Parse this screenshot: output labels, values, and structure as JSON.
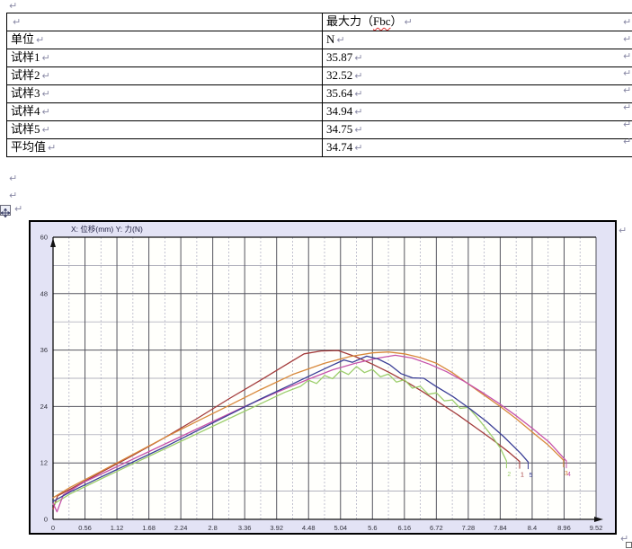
{
  "marks": {
    "pilcrow": "↵"
  },
  "table": {
    "header": {
      "label": "",
      "value_prefix": "最大力（",
      "value_flagged": "Fbc",
      "value_suffix": "）"
    },
    "rows": [
      {
        "label": "单位",
        "value": "N"
      },
      {
        "label": "试样1",
        "value": "35.87"
      },
      {
        "label": "试样2",
        "value": "32.52"
      },
      {
        "label": "试样3",
        "value": "35.64"
      },
      {
        "label": "试样4",
        "value": "34.94"
      },
      {
        "label": "试样5",
        "value": "34.75"
      },
      {
        "label": "平均值",
        "value": "34.74"
      }
    ]
  },
  "chart_data": {
    "type": "line",
    "title": "X: 位移(mm)   Y: 力(N)",
    "xlabel": "位移(mm)",
    "ylabel": "力(N)",
    "xlim": [
      0,
      9.52
    ],
    "ylim": [
      0,
      60
    ],
    "x_tick_step": 0.56,
    "x_minor_step": 0.28,
    "y_tick_step": 12,
    "y_minor_step": 6,
    "grid": true,
    "legend": "none",
    "x_tick_labels": [
      "0",
      "0.56",
      "1.12",
      "1.68",
      "2.24",
      "2.8",
      "3.36",
      "3.92",
      "4.48",
      "5.04",
      "5.6",
      "6.16",
      "6.72",
      "7.28",
      "7.84",
      "8.4",
      "8.96",
      "9.52"
    ],
    "y_tick_labels": [
      "0",
      "12",
      "24",
      "36",
      "48",
      "60"
    ],
    "colors": {
      "plot_bg": "#fffffc",
      "band_bg": "#e3e3f5",
      "grid_major": "#55555e",
      "grid_minor_v": "#b4b4c6",
      "grid_minor_h": "#9a9aaa",
      "axis": "#111111",
      "tick_text": "#33333e",
      "title_text": "#222244"
    },
    "series": [
      {
        "name": "试样1",
        "end_label": "1",
        "color": "#a33b3b",
        "max": 35.87,
        "points": [
          [
            0,
            2.2
          ],
          [
            0.08,
            5.0
          ],
          [
            0.3,
            6.4
          ],
          [
            0.84,
            10.0
          ],
          [
            1.4,
            13.6
          ],
          [
            1.96,
            17.4
          ],
          [
            2.52,
            21.4
          ],
          [
            3.08,
            25.6
          ],
          [
            3.64,
            29.6
          ],
          [
            4.1,
            33.0
          ],
          [
            4.4,
            35.2
          ],
          [
            4.7,
            35.8
          ],
          [
            5.0,
            35.9
          ],
          [
            5.3,
            34.6
          ],
          [
            5.6,
            33.0
          ],
          [
            5.9,
            31.2
          ],
          [
            6.2,
            29.2
          ],
          [
            6.5,
            27.0
          ],
          [
            6.8,
            24.6
          ],
          [
            7.1,
            22.2
          ],
          [
            7.4,
            19.6
          ],
          [
            7.7,
            17.0
          ],
          [
            8.0,
            14.2
          ],
          [
            8.18,
            12.3
          ]
        ]
      },
      {
        "name": "试样2",
        "end_label": "2",
        "color": "#9cce6c",
        "max": 32.52,
        "points": [
          [
            0,
            3.2
          ],
          [
            0.3,
            5.4
          ],
          [
            0.84,
            8.6
          ],
          [
            1.4,
            11.8
          ],
          [
            1.96,
            15.0
          ],
          [
            2.52,
            18.2
          ],
          [
            3.08,
            21.4
          ],
          [
            3.64,
            24.6
          ],
          [
            4.06,
            27.0
          ],
          [
            4.34,
            28.3
          ],
          [
            4.48,
            29.6
          ],
          [
            4.62,
            28.9
          ],
          [
            4.76,
            30.6
          ],
          [
            4.9,
            29.9
          ],
          [
            5.04,
            31.6
          ],
          [
            5.18,
            30.8
          ],
          [
            5.32,
            32.5
          ],
          [
            5.46,
            31.2
          ],
          [
            5.6,
            31.9
          ],
          [
            5.74,
            30.3
          ],
          [
            5.88,
            30.9
          ],
          [
            6.02,
            29.2
          ],
          [
            6.16,
            29.7
          ],
          [
            6.3,
            27.9
          ],
          [
            6.44,
            28.3
          ],
          [
            6.58,
            26.6
          ],
          [
            6.72,
            26.9
          ],
          [
            6.86,
            25.2
          ],
          [
            7.0,
            25.4
          ],
          [
            7.14,
            23.6
          ],
          [
            7.28,
            23.8
          ],
          [
            7.42,
            21.9
          ],
          [
            7.56,
            19.8
          ],
          [
            7.7,
            17.6
          ],
          [
            7.84,
            15.2
          ],
          [
            7.95,
            12.4
          ]
        ]
      },
      {
        "name": "试样3",
        "end_label": "3",
        "color": "#d8883a",
        "max": 35.64,
        "points": [
          [
            0,
            4.6
          ],
          [
            0.3,
            6.8
          ],
          [
            0.84,
            10.2
          ],
          [
            1.4,
            13.8
          ],
          [
            1.96,
            17.4
          ],
          [
            2.52,
            20.8
          ],
          [
            3.08,
            24.2
          ],
          [
            3.64,
            27.6
          ],
          [
            4.2,
            30.8
          ],
          [
            4.76,
            33.2
          ],
          [
            5.2,
            34.6
          ],
          [
            5.6,
            35.4
          ],
          [
            5.88,
            35.6
          ],
          [
            6.16,
            35.2
          ],
          [
            6.44,
            34.4
          ],
          [
            6.72,
            33.2
          ],
          [
            7.0,
            31.2
          ],
          [
            7.28,
            28.8
          ],
          [
            7.56,
            26.4
          ],
          [
            7.84,
            24.0
          ],
          [
            8.12,
            21.4
          ],
          [
            8.4,
            18.6
          ],
          [
            8.68,
            15.8
          ],
          [
            8.95,
            12.6
          ]
        ]
      },
      {
        "name": "试样4",
        "end_label": "4",
        "color": "#c653ab",
        "max": 34.94,
        "points": [
          [
            0,
            3.4
          ],
          [
            0.07,
            1.6
          ],
          [
            0.18,
            5.2
          ],
          [
            0.56,
            8.0
          ],
          [
            1.12,
            11.2
          ],
          [
            1.68,
            14.4
          ],
          [
            2.24,
            17.6
          ],
          [
            2.8,
            20.8
          ],
          [
            3.36,
            24.0
          ],
          [
            3.92,
            27.0
          ],
          [
            4.48,
            29.8
          ],
          [
            4.9,
            31.8
          ],
          [
            5.3,
            33.2
          ],
          [
            5.7,
            34.3
          ],
          [
            6.0,
            34.9
          ],
          [
            6.3,
            34.3
          ],
          [
            6.6,
            33.0
          ],
          [
            6.9,
            31.4
          ],
          [
            7.2,
            29.4
          ],
          [
            7.5,
            27.2
          ],
          [
            7.8,
            24.8
          ],
          [
            8.1,
            22.2
          ],
          [
            8.4,
            19.4
          ],
          [
            8.7,
            16.4
          ],
          [
            9.0,
            12.4
          ]
        ]
      },
      {
        "name": "试样5",
        "end_label": "5",
        "color": "#3a3e96",
        "max": 34.75,
        "points": [
          [
            0,
            3.8
          ],
          [
            0.3,
            5.8
          ],
          [
            0.84,
            9.0
          ],
          [
            1.4,
            12.2
          ],
          [
            1.96,
            15.4
          ],
          [
            2.52,
            18.8
          ],
          [
            3.08,
            22.2
          ],
          [
            3.64,
            25.6
          ],
          [
            4.2,
            28.8
          ],
          [
            4.62,
            31.2
          ],
          [
            4.9,
            32.8
          ],
          [
            5.1,
            33.9
          ],
          [
            5.25,
            33.4
          ],
          [
            5.5,
            34.7
          ],
          [
            5.7,
            34.1
          ],
          [
            5.9,
            32.9
          ],
          [
            6.1,
            31.0
          ],
          [
            6.3,
            30.1
          ],
          [
            6.5,
            30.0
          ],
          [
            6.7,
            28.4
          ],
          [
            7.0,
            26.2
          ],
          [
            7.3,
            23.6
          ],
          [
            7.6,
            20.8
          ],
          [
            7.9,
            17.6
          ],
          [
            8.2,
            14.0
          ],
          [
            8.33,
            12.2
          ]
        ]
      }
    ]
  }
}
